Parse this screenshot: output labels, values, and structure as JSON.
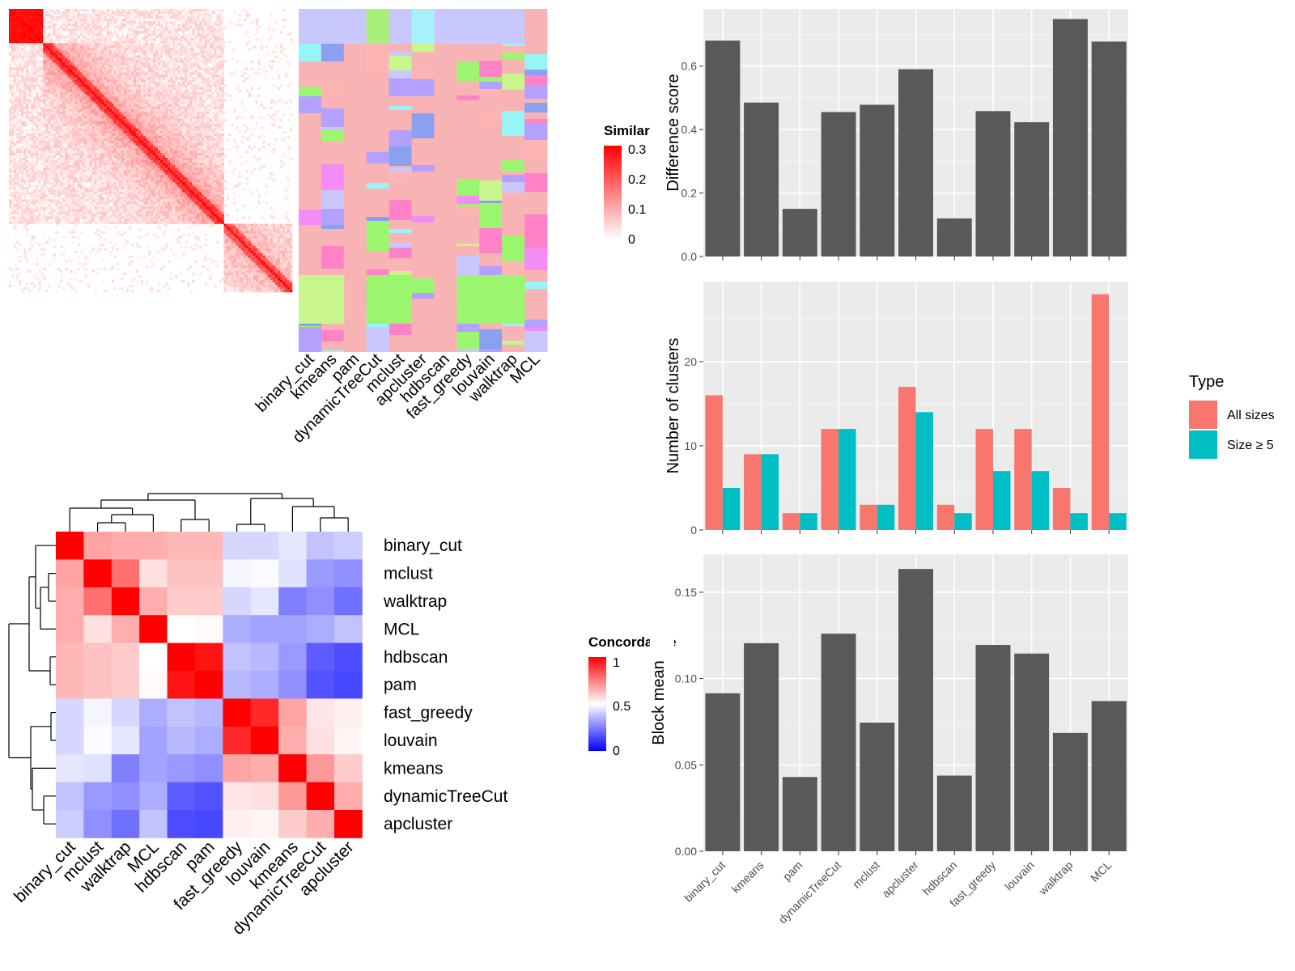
{
  "chart_data": [
    {
      "type": "heatmap",
      "legend_title": "Similarity",
      "legend_ticks": [
        "0",
        "0.1",
        "0.2",
        "0.3"
      ],
      "column_labels": [
        "binary_cut",
        "kmeans",
        "pam",
        "dynamicTreeCut",
        "mclust",
        "apcluster",
        "hdbscan",
        "fast_greedy",
        "louvain",
        "walktrap",
        "MCL"
      ],
      "colors": {
        "low": "#ffffff",
        "high": "#ff0000"
      }
    },
    {
      "type": "heatmap",
      "legend_title": "Concordance",
      "legend_ticks": [
        "0",
        "0.5",
        "1"
      ],
      "labels": [
        "binary_cut",
        "mclust",
        "walktrap",
        "MCL",
        "hdbscan",
        "pam",
        "fast_greedy",
        "louvain",
        "kmeans",
        "dynamicTreeCut",
        "apcluster"
      ],
      "values": [
        [
          1.0,
          0.68,
          0.66,
          0.66,
          0.64,
          0.64,
          0.42,
          0.42,
          0.45,
          0.38,
          0.4
        ],
        [
          0.68,
          1.0,
          0.78,
          0.56,
          0.62,
          0.62,
          0.48,
          0.49,
          0.44,
          0.3,
          0.28
        ],
        [
          0.66,
          0.78,
          1.0,
          0.66,
          0.6,
          0.6,
          0.42,
          0.45,
          0.25,
          0.28,
          0.22
        ],
        [
          0.66,
          0.56,
          0.66,
          1.0,
          0.5,
          0.51,
          0.34,
          0.32,
          0.32,
          0.34,
          0.38
        ],
        [
          0.64,
          0.62,
          0.6,
          0.5,
          1.0,
          0.96,
          0.38,
          0.36,
          0.3,
          0.18,
          0.15
        ],
        [
          0.64,
          0.62,
          0.6,
          0.51,
          0.96,
          1.0,
          0.36,
          0.34,
          0.28,
          0.16,
          0.14
        ],
        [
          0.42,
          0.48,
          0.42,
          0.34,
          0.38,
          0.36,
          1.0,
          0.92,
          0.68,
          0.55,
          0.53
        ],
        [
          0.42,
          0.49,
          0.45,
          0.32,
          0.36,
          0.34,
          0.92,
          1.0,
          0.66,
          0.56,
          0.52
        ],
        [
          0.45,
          0.44,
          0.25,
          0.32,
          0.3,
          0.28,
          0.68,
          0.66,
          1.0,
          0.7,
          0.6
        ],
        [
          0.38,
          0.3,
          0.28,
          0.34,
          0.18,
          0.16,
          0.55,
          0.56,
          0.7,
          1.0,
          0.66
        ],
        [
          0.4,
          0.28,
          0.22,
          0.38,
          0.15,
          0.14,
          0.53,
          0.52,
          0.6,
          0.66,
          1.0
        ]
      ],
      "colors": {
        "low": "#0000ff",
        "mid": "#ffffff",
        "high": "#ff0000"
      }
    },
    {
      "type": "bar",
      "categories": [
        "binary_cut",
        "kmeans",
        "pam",
        "dynamicTreeCut",
        "mclust",
        "apcluster",
        "hdbscan",
        "fast_greedy",
        "louvain",
        "walktrap",
        "MCL"
      ],
      "values": [
        0.68,
        0.485,
        0.15,
        0.455,
        0.478,
        0.59,
        0.12,
        0.458,
        0.423,
        0.748,
        0.677
      ],
      "ylabel": "Difference score",
      "ylim": [
        0,
        0.78
      ],
      "yticks": [
        "0.0",
        "0.2",
        "0.4",
        "0.6"
      ],
      "grid": true
    },
    {
      "type": "bar",
      "categories": [
        "binary_cut",
        "kmeans",
        "pam",
        "dynamicTreeCut",
        "mclust",
        "apcluster",
        "hdbscan",
        "fast_greedy",
        "louvain",
        "walktrap",
        "MCL"
      ],
      "series": [
        {
          "name": "All sizes",
          "values": [
            16,
            9,
            2,
            12,
            3,
            17,
            3,
            12,
            12,
            5,
            28
          ]
        },
        {
          "name": "Size ≥ 5",
          "values": [
            5,
            9,
            2,
            12,
            3,
            14,
            2,
            7,
            7,
            2,
            2
          ]
        }
      ],
      "ylabel": "Number of clusters",
      "ylim": [
        0,
        29.5
      ],
      "yticks": [
        "0",
        "10",
        "20"
      ],
      "legend_title": "Type",
      "legend_position": "right",
      "colors": {
        "All sizes": "#F8766D",
        "Size ≥ 5": "#00BFC4"
      },
      "grid": true
    },
    {
      "type": "bar",
      "categories": [
        "binary_cut",
        "kmeans",
        "pam",
        "dynamicTreeCut",
        "mclust",
        "apcluster",
        "hdbscan",
        "fast_greedy",
        "louvain",
        "walktrap",
        "MCL"
      ],
      "values": [
        0.0915,
        0.1205,
        0.043,
        0.126,
        0.0745,
        0.1635,
        0.0438,
        0.1195,
        0.1145,
        0.0685,
        0.087
      ],
      "ylabel": "Block mean",
      "ylim": [
        0,
        0.172
      ],
      "yticks": [
        "0.00",
        "0.05",
        "0.10",
        "0.15"
      ],
      "grid": true
    }
  ]
}
